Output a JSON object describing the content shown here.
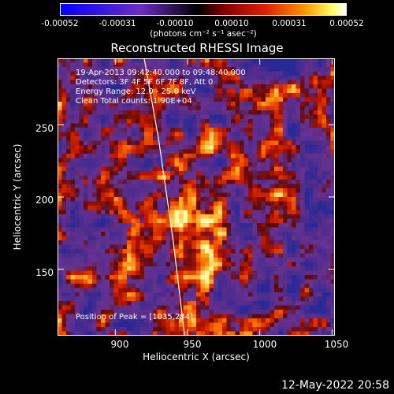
{
  "colorbar": {
    "ticks": [
      "-0.00052",
      "-0.00031",
      "-0.00010",
      "0.00010",
      "0.00031",
      "0.00052"
    ],
    "units": "(photons cm⁻² s⁻¹ asec⁻²)",
    "colors": [
      "#0000ff",
      "#6d2dc4",
      "#000000",
      "#8b0000",
      "#e02000",
      "#ff9900",
      "#ffff66",
      "#ffffff"
    ]
  },
  "chart_data": {
    "type": "heatmap",
    "title": "Reconstructed RHESSI Image",
    "xlabel": "Heliocentric X (arcsec)",
    "ylabel": "Heliocentric Y (arcsec)",
    "xlim": [
      860,
      1052
    ],
    "ylim": [
      104,
      296
    ],
    "xticks": [
      "900",
      "950",
      "1000",
      "1050"
    ],
    "yticks": [
      "150",
      "200",
      "250"
    ],
    "annotations": [
      "19-Apr-2013 09:42:40.000 to 09:48:40.000",
      "Detectors: 3F 4F 5F 6F 7F 8F, Att 0",
      "Energy Range: 12.0 - 25.0 keV",
      "Clean    Total counts: 1.90E+04"
    ],
    "peak_label": "Position of Peak = [1035,284]",
    "peak": [
      1035,
      284
    ],
    "limb_curve": [
      [
        920,
        296
      ],
      [
        930,
        240
      ],
      [
        940,
        170
      ],
      [
        948,
        104
      ]
    ]
  },
  "footer": "12-May-2022 20:58"
}
